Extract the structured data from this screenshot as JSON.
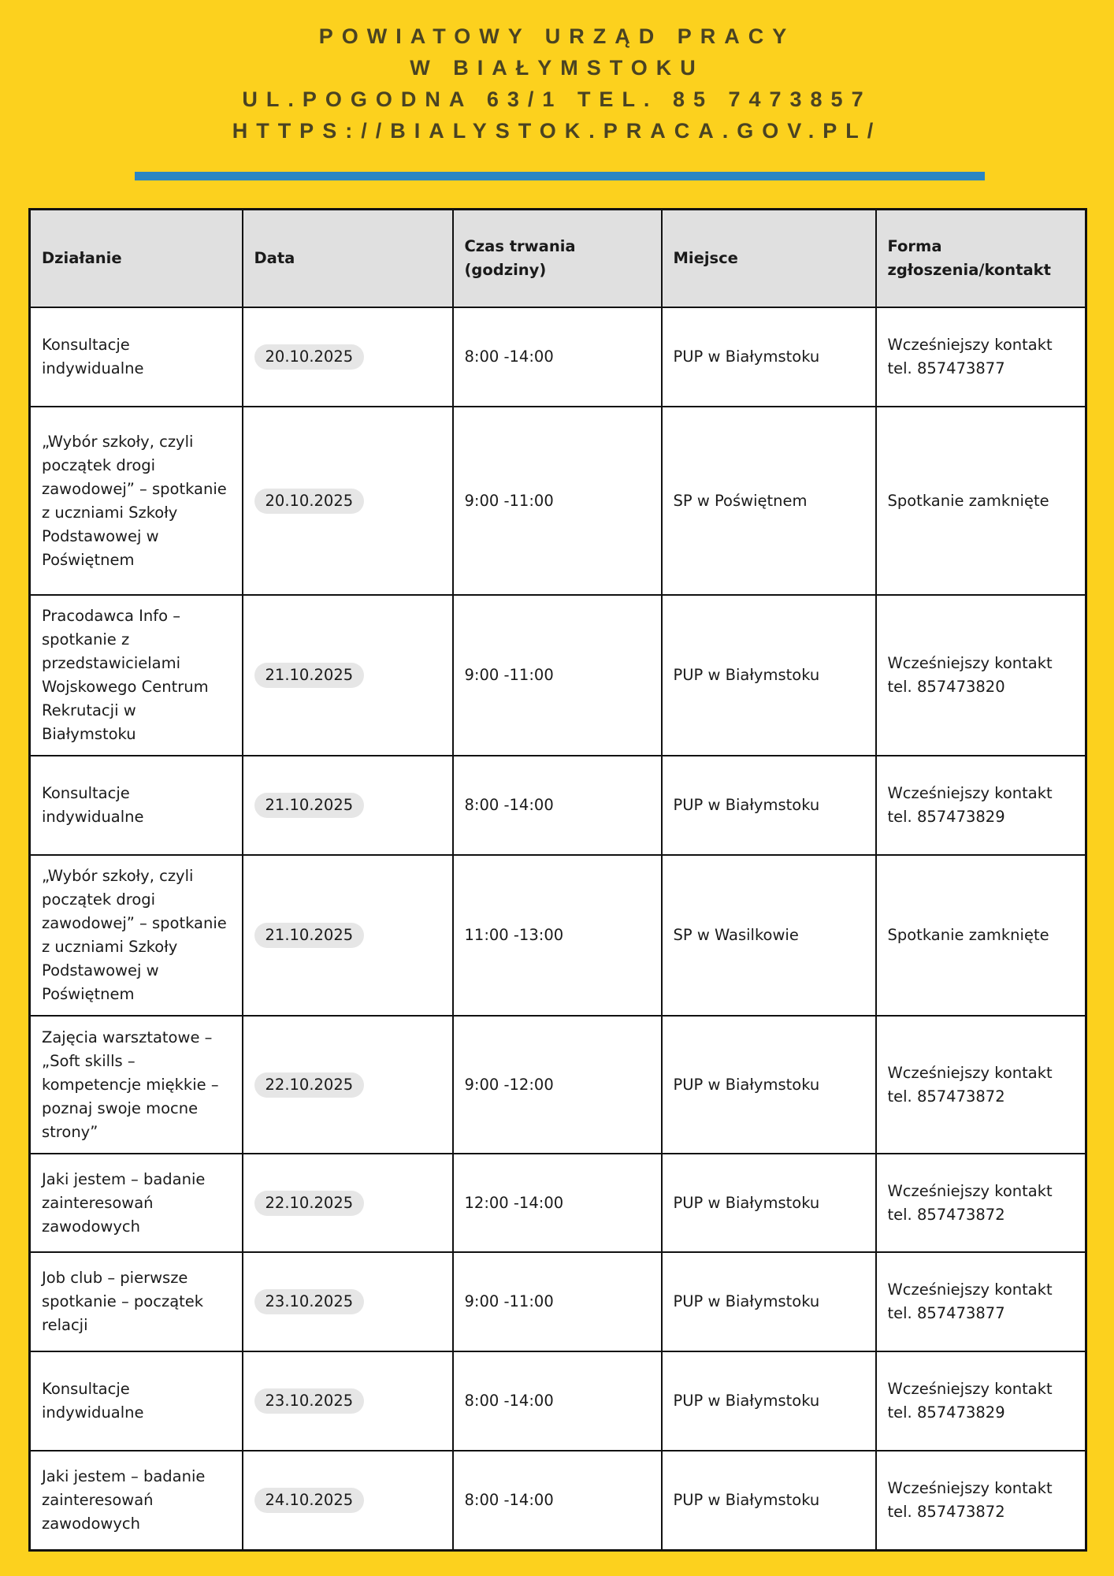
{
  "header": {
    "line1": "POWIATOWY URZĄD PRACY",
    "line2": "W BIAŁYMSTOKU",
    "line3": "UL.POGODNA 63/1 TEL. 85 7473857",
    "line4": "HTTPS://BIALYSTOK.PRACA.GOV.PL/"
  },
  "colors": {
    "background": "#fcd11e",
    "divider": "#2a86c2",
    "header_row": "#e0e0e0"
  },
  "table": {
    "columns": [
      "Działanie",
      "Data",
      "Czas trwania (godziny)",
      "Miejsce",
      "Forma zgłoszenia/kontakt"
    ],
    "rows": [
      {
        "action": "Konsultacje indywidualne",
        "date": "20.10.2025",
        "time": "8:00 -14:00",
        "place": "PUP w Białymstoku",
        "contact": "Wcześniejszy kontakt tel. 857473877"
      },
      {
        "action": "„Wybór szkoły, czyli początek drogi zawodowej” – spotkanie z uczniami Szkoły Podstawowej w Poświętnem",
        "date": "20.10.2025",
        "time": "9:00 -11:00",
        "place": "SP w Poświętnem",
        "contact": "Spotkanie zamknięte"
      },
      {
        "action": "Pracodawca Info – spotkanie z przedstawicielami Wojskowego Centrum Rekrutacji w Białymstoku",
        "date": "21.10.2025",
        "time": "9:00 -11:00",
        "place": "PUP w Białymstoku",
        "contact": "Wcześniejszy kontakt tel. 857473820"
      },
      {
        "action": "Konsultacje indywidualne",
        "date": "21.10.2025",
        "time": "8:00 -14:00",
        "place": "PUP w Białymstoku",
        "contact": "Wcześniejszy kontakt tel. 857473829"
      },
      {
        "action": "„Wybór szkoły, czyli początek drogi zawodowej” – spotkanie z uczniami Szkoły Podstawowej w Poświętnem",
        "date": "21.10.2025",
        "time": "11:00 -13:00",
        "place": "SP w Wasilkowie",
        "contact": "Spotkanie zamknięte"
      },
      {
        "action": "Zajęcia warsztatowe – „Soft skills – kompetencje miękkie – poznaj swoje mocne strony”",
        "date": "22.10.2025",
        "time": "9:00 -12:00",
        "place": "PUP w Białymstoku",
        "contact": "Wcześniejszy kontakt tel. 857473872"
      },
      {
        "action": "Jaki jestem – badanie zainteresowań zawodowych",
        "date": "22.10.2025",
        "time": "12:00 -14:00",
        "place": "PUP w Białymstoku",
        "contact": "Wcześniejszy kontakt tel. 857473872"
      },
      {
        "action": "Job club – pierwsze spotkanie – początek relacji",
        "date": "23.10.2025",
        "time": "9:00 -11:00",
        "place": "PUP w Białymstoku",
        "contact": "Wcześniejszy kontakt tel. 857473877"
      },
      {
        "action": "Konsultacje indywidualne",
        "date": "23.10.2025",
        "time": "8:00 -14:00",
        "place": "PUP w Białymstoku",
        "contact": "Wcześniejszy kontakt tel. 857473829"
      },
      {
        "action": "Jaki jestem – badanie zainteresowań zawodowych",
        "date": "24.10.2025",
        "time": "8:00 -14:00",
        "place": "PUP w Białymstoku",
        "contact": "Wcześniejszy kontakt tel. 857473872"
      }
    ]
  }
}
